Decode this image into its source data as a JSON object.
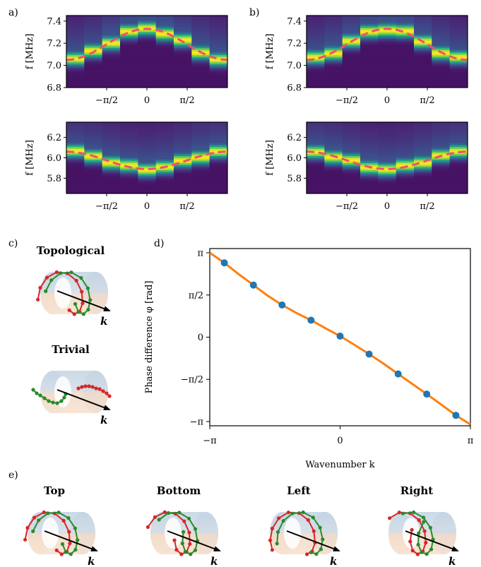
{
  "panel_labels": {
    "a": "a)",
    "b": "b)",
    "c": "c)",
    "d": "d)",
    "e": "e)"
  },
  "diagram_labels": {
    "topological": "Topological",
    "trivial": "Trivial",
    "top": "Top",
    "bottom": "Bottom",
    "left": "Left",
    "right": "Right",
    "k": "k"
  },
  "colors": {
    "tube_top": "#c5d6e6",
    "tube_bottom": "#f6dcc6",
    "red": "#d62728",
    "green": "#2a8a2a",
    "dashed_fit": "#f0506e",
    "curve": "#ff7f0e",
    "points": "#1f77b4"
  },
  "chart_data": [
    {
      "id": "a-upper",
      "type": "heatmap",
      "ylabel": "f [MHz]",
      "ylim": [
        6.8,
        7.45
      ],
      "yticks": [
        "6.8",
        "7.0",
        "7.2",
        "7.4"
      ],
      "xlim": [
        -3.1416,
        3.1416
      ],
      "xticks": [
        "−π/2",
        "0",
        "π/2"
      ],
      "columns": 9,
      "dashed_curve": {
        "center": 7.19,
        "amplitude": 0.14
      }
    },
    {
      "id": "a-lower",
      "type": "heatmap",
      "ylabel": "f [MHz]",
      "ylim": [
        5.65,
        6.35
      ],
      "yticks": [
        "5.8",
        "6.0",
        "6.2"
      ],
      "xlim": [
        -3.1416,
        3.1416
      ],
      "xticks": [
        "−π/2",
        "0",
        "π/2"
      ],
      "columns": 9,
      "dashed_curve": {
        "center": 5.975,
        "amplitude": -0.085
      }
    },
    {
      "id": "b-upper",
      "type": "heatmap",
      "ylabel": "f [MHz]",
      "ylim": [
        6.8,
        7.45
      ],
      "yticks": [
        "6.8",
        "7.0",
        "7.2",
        "7.4"
      ],
      "xlim": [
        -3.1416,
        3.1416
      ],
      "xticks": [
        "−π/2",
        "0",
        "π/2"
      ],
      "columns": 9,
      "dashed_curve": {
        "center": 7.19,
        "amplitude": 0.14
      }
    },
    {
      "id": "b-lower",
      "type": "heatmap",
      "ylabel": "f [MHz]",
      "ylim": [
        5.65,
        6.35
      ],
      "yticks": [
        "5.8",
        "6.0",
        "6.2"
      ],
      "xlim": [
        -3.1416,
        3.1416
      ],
      "xticks": [
        "−π/2",
        "0",
        "π/2"
      ],
      "columns": 9,
      "dashed_curve": {
        "center": 5.975,
        "amplitude": -0.085
      }
    },
    {
      "id": "d",
      "type": "line",
      "xlabel": "Wavenumber k",
      "ylabel": "Phase difference φ [rad]",
      "xlim": [
        -3.1416,
        3.1416
      ],
      "ylim": [
        -3.3,
        3.3
      ],
      "xticks": [
        {
          "v": -3.1416,
          "t": "−π"
        },
        {
          "v": 0,
          "t": "0"
        },
        {
          "v": 3.1416,
          "t": "π"
        }
      ],
      "yticks": [
        {
          "v": -3.1416,
          "t": "−π"
        },
        {
          "v": -1.5708,
          "t": "−π/2"
        },
        {
          "v": 0,
          "t": "0"
        },
        {
          "v": 1.5708,
          "t": "π/2"
        },
        {
          "v": 3.1416,
          "t": "π"
        }
      ],
      "points": {
        "x": [
          -2.79,
          -2.09,
          -1.4,
          -0.7,
          0.0,
          0.7,
          1.4,
          2.09,
          2.79
        ],
        "y": [
          2.77,
          1.94,
          1.2,
          0.63,
          0.04,
          -0.63,
          -1.37,
          -2.12,
          -2.91
        ]
      },
      "curve": {
        "x": [
          -3.1416,
          -2.79,
          -2.44,
          -2.09,
          -1.75,
          -1.4,
          -1.05,
          -0.7,
          -0.35,
          0.0,
          0.35,
          0.7,
          1.05,
          1.4,
          1.75,
          2.09,
          2.44,
          2.79,
          3.1416
        ],
        "y": [
          3.1416,
          2.77,
          2.34,
          1.94,
          1.55,
          1.2,
          0.9,
          0.63,
          0.33,
          0.04,
          -0.29,
          -0.63,
          -0.99,
          -1.37,
          -1.75,
          -2.12,
          -2.51,
          -2.91,
          -3.25
        ]
      }
    }
  ]
}
